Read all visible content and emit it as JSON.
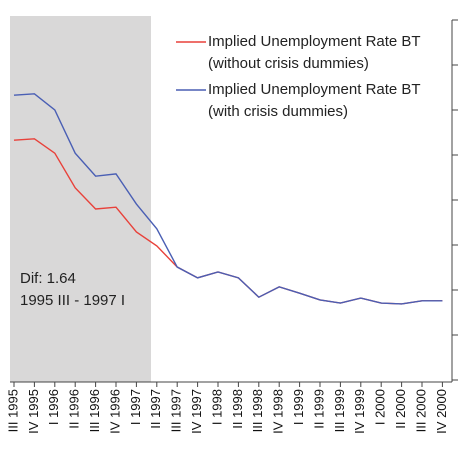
{
  "chart_data": {
    "type": "line",
    "categories": [
      "III 1995",
      "IV 1995",
      "I 1996",
      "II 1996",
      "III 1996",
      "IV 1996",
      "I 1997",
      "II 1997",
      "III 1997",
      "IV 1997",
      "I 1998",
      "II 1998",
      "III 1998",
      "IV 1998",
      "I 1999",
      "II 1999",
      "III 1999",
      "IV 1999",
      "I 2000",
      "II 2000",
      "III 2000",
      "IV 2000"
    ],
    "series": [
      {
        "name": "Implied Unemployment  Rate BT (without crisis dummies)",
        "color": "#e8413a",
        "values": [
          5.33,
          5.36,
          5.04,
          4.27,
          3.8,
          3.84,
          3.29,
          2.98,
          2.51,
          2.27,
          2.4,
          2.27,
          1.84,
          2.07,
          1.93,
          1.78,
          1.71,
          1.82,
          1.71,
          1.69,
          1.76,
          1.76
        ]
      },
      {
        "name": "Implied Unemployment  Rate BT (with crisis dummies)",
        "color": "#4a5fb4",
        "values": [
          6.33,
          6.36,
          6.0,
          5.04,
          4.53,
          4.58,
          3.91,
          3.36,
          2.51,
          2.27,
          2.4,
          2.27,
          1.84,
          2.07,
          1.93,
          1.78,
          1.71,
          1.82,
          1.71,
          1.69,
          1.76,
          1.76
        ]
      }
    ],
    "annotations": [
      "Dif: 1.64",
      "1995 III - 1997 I"
    ],
    "ylim": [
      0,
      8
    ],
    "yticks": [
      0,
      1,
      2,
      3,
      4,
      5,
      6,
      7,
      8
    ],
    "legend": "top-right"
  }
}
